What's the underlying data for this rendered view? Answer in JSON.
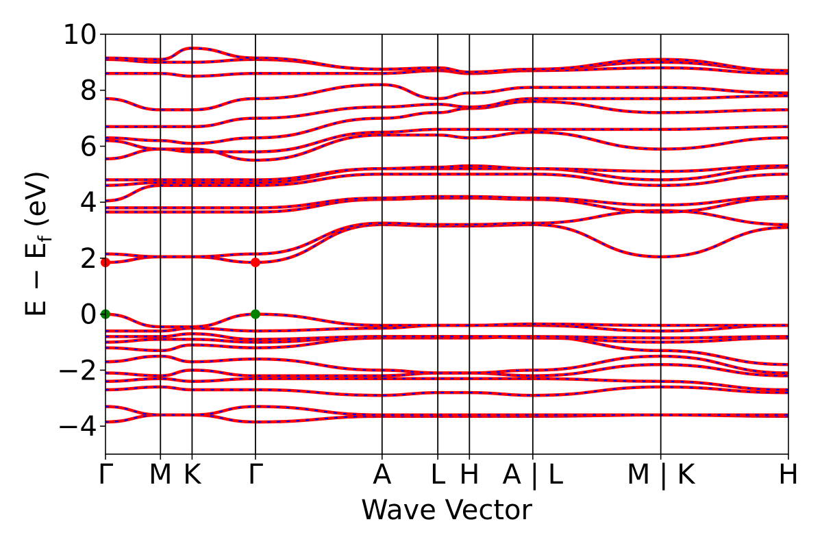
{
  "chart_data": {
    "type": "line",
    "title": "",
    "xlabel": "Wave Vector",
    "ylabel": "E − E",
    "ylabel_sub": "f",
    "ylabel_unit": "(eV)",
    "ylim": [
      -5,
      10
    ],
    "yticks": [
      {
        "value": -4,
        "label": "−4"
      },
      {
        "value": -2,
        "label": "−2"
      },
      {
        "value": 0,
        "label": "0"
      },
      {
        "value": 2,
        "label": "2"
      },
      {
        "value": 4,
        "label": "4"
      },
      {
        "value": 6,
        "label": "6"
      },
      {
        "value": 8,
        "label": "8"
      },
      {
        "value": 10,
        "label": "10"
      }
    ],
    "xlim": [
      0,
      1
    ],
    "kpath": [
      {
        "label": "Γ",
        "x": 0.0
      },
      {
        "label": "M",
        "x": 0.0805
      },
      {
        "label": "K",
        "x": 0.1268
      },
      {
        "label": "Γ",
        "x": 0.2196
      },
      {
        "label": "A",
        "x": 0.405
      },
      {
        "label": "L",
        "x": 0.4866
      },
      {
        "label": "H",
        "x": 0.5329
      },
      {
        "label": "A | L",
        "x": 0.6257
      },
      {
        "label": "M | K",
        "x": 0.8131
      },
      {
        "label": "H",
        "x": 1.0
      }
    ],
    "grid": false,
    "line_colors": {
      "spin_up": "#ff0000",
      "spin_down": "#0000ff"
    },
    "marker_colors": {
      "cbm": "#ff0000",
      "vbm": "#008000"
    },
    "band_nodes_x": [
      0.0,
      0.0805,
      0.1268,
      0.2196,
      0.405,
      0.4866,
      0.5329,
      0.6257,
      0.8131,
      1.0
    ],
    "bands": [
      [
        -3.85,
        -3.6,
        -3.6,
        -3.85,
        -3.65,
        -3.65,
        -3.65,
        -3.65,
        -3.6,
        -3.65
      ],
      [
        -3.3,
        -3.6,
        -3.6,
        -3.3,
        -3.6,
        -3.6,
        -3.6,
        -3.6,
        -3.6,
        -3.6
      ],
      [
        -2.7,
        -2.6,
        -2.7,
        -2.7,
        -2.9,
        -2.8,
        -2.8,
        -2.9,
        -2.6,
        -2.8
      ],
      [
        -2.4,
        -2.3,
        -2.4,
        -2.3,
        -2.3,
        -2.3,
        -2.3,
        -2.3,
        -2.4,
        -2.7
      ],
      [
        -2.1,
        -2.2,
        -2.0,
        -2.2,
        -2.2,
        -2.1,
        -2.1,
        -2.2,
        -1.8,
        -2.2
      ],
      [
        -1.7,
        -1.5,
        -1.7,
        -1.6,
        -2.0,
        -2.1,
        -2.1,
        -2.0,
        -1.5,
        -2.1
      ],
      [
        -1.2,
        -1.3,
        -1.1,
        -1.2,
        -0.85,
        -0.85,
        -0.85,
        -0.8,
        -1.3,
        -1.8
      ],
      [
        -1.0,
        -0.9,
        -0.9,
        -1.0,
        -0.8,
        -0.8,
        -0.8,
        -0.85,
        -1.0,
        -0.85
      ],
      [
        -0.8,
        -0.8,
        -0.7,
        -0.9,
        -0.8,
        -0.8,
        -0.8,
        -0.8,
        -0.85,
        -0.8
      ],
      [
        -0.6,
        -0.6,
        -0.5,
        -0.6,
        -0.5,
        -0.4,
        -0.4,
        -0.4,
        -0.6,
        -0.4
      ],
      [
        0.0,
        -0.45,
        -0.45,
        0.0,
        -0.4,
        -0.4,
        -0.4,
        -0.35,
        -0.4,
        -0.4
      ],
      [
        1.85,
        2.05,
        2.05,
        1.85,
        3.2,
        3.15,
        3.15,
        3.2,
        2.05,
        3.1
      ],
      [
        2.15,
        2.05,
        2.05,
        2.15,
        3.25,
        3.2,
        3.2,
        3.25,
        3.7,
        3.2
      ],
      [
        3.65,
        3.65,
        3.65,
        3.65,
        4.1,
        4.15,
        4.15,
        4.1,
        3.65,
        4.15
      ],
      [
        3.8,
        3.8,
        3.8,
        3.8,
        4.15,
        4.2,
        4.2,
        4.15,
        3.9,
        4.2
      ],
      [
        4.05,
        4.6,
        4.6,
        4.6,
        5.0,
        5.0,
        5.0,
        5.0,
        4.6,
        5.0
      ],
      [
        4.6,
        4.7,
        4.7,
        4.7,
        5.2,
        5.2,
        5.2,
        5.2,
        4.8,
        5.25
      ],
      [
        4.8,
        4.8,
        4.8,
        4.8,
        5.2,
        5.25,
        5.3,
        5.2,
        5.1,
        5.3
      ],
      [
        5.55,
        5.9,
        5.9,
        5.5,
        6.4,
        6.4,
        6.3,
        6.5,
        5.9,
        6.3
      ],
      [
        6.2,
        5.9,
        5.8,
        5.8,
        6.5,
        6.6,
        6.6,
        6.6,
        6.6,
        6.7
      ],
      [
        6.3,
        6.2,
        6.1,
        6.3,
        7.0,
        7.2,
        7.35,
        7.6,
        7.2,
        7.3
      ],
      [
        6.7,
        6.7,
        6.7,
        7.0,
        7.4,
        7.5,
        7.4,
        7.7,
        7.7,
        7.8
      ],
      [
        7.7,
        7.3,
        7.3,
        7.7,
        8.2,
        7.7,
        7.9,
        8.1,
        8.1,
        7.9
      ],
      [
        8.6,
        8.6,
        8.5,
        8.6,
        8.6,
        8.7,
        8.6,
        8.7,
        8.8,
        8.6
      ],
      [
        9.1,
        9.0,
        9.0,
        9.1,
        8.75,
        8.75,
        8.6,
        8.75,
        9.0,
        8.7
      ],
      [
        9.15,
        9.1,
        9.5,
        9.15,
        8.75,
        8.8,
        8.65,
        8.75,
        9.1,
        8.7
      ]
    ],
    "extrema": [
      {
        "kind": "cbm",
        "x": 0.0,
        "y": 1.85
      },
      {
        "kind": "cbm",
        "x": 0.2196,
        "y": 1.85
      },
      {
        "kind": "vbm",
        "x": 0.0,
        "y": 0.0
      },
      {
        "kind": "vbm",
        "x": 0.2196,
        "y": 0.0
      }
    ]
  }
}
